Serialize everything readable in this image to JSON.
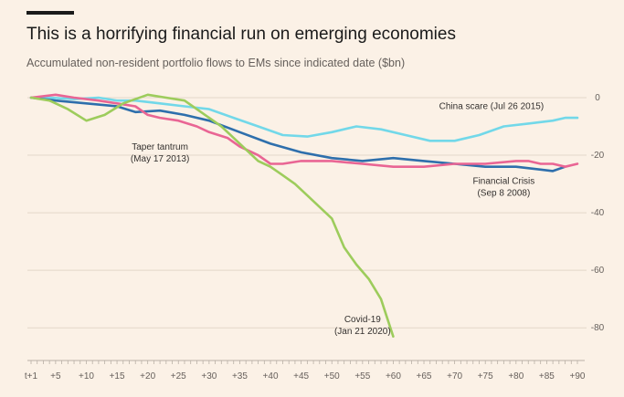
{
  "header": {
    "title": "This is a horrifying financial run on emerging economies",
    "subtitle": "Accumulated non-resident portfolio flows to EMs since indicated date ($bn)"
  },
  "chart_data": {
    "type": "line",
    "title": "This is a horrifying financial run on emerging economies",
    "subtitle": "Accumulated non-resident portfolio flows to EMs since indicated date ($bn)",
    "xlabel": "",
    "ylabel": "",
    "xlim": [
      1,
      90
    ],
    "ylim": [
      -85,
      0
    ],
    "grid": true,
    "y_axis_side": "right",
    "x_tick_labels": [
      "t+1",
      "+5",
      "+10",
      "+15",
      "+20",
      "+25",
      "+30",
      "+35",
      "+40",
      "+45",
      "+50",
      "+55",
      "+60",
      "+65",
      "+70",
      "+75",
      "+80",
      "+85",
      "+90"
    ],
    "x_tick_values": [
      1,
      5,
      10,
      15,
      20,
      25,
      30,
      35,
      40,
      45,
      50,
      55,
      60,
      65,
      70,
      75,
      80,
      85,
      90
    ],
    "y_tick_labels": [
      "0",
      "-20",
      "-40",
      "-60",
      "-80"
    ],
    "y_tick_values": [
      0,
      -20,
      -40,
      -60,
      -80
    ],
    "series": [
      {
        "color": "#72d8e9",
        "x": [
          1,
          4,
          8,
          12,
          15,
          18,
          22,
          26,
          30,
          34,
          38,
          42,
          46,
          50,
          54,
          58,
          62,
          66,
          70,
          74,
          78,
          82,
          86,
          88,
          90
        ],
        "y": [
          0,
          0,
          -0.5,
          0,
          -1,
          -1,
          -2,
          -3,
          -4,
          -7,
          -10,
          -13,
          -13.5,
          -12,
          -10,
          -11,
          -13,
          -15,
          -15,
          -13,
          -10,
          -9,
          -8,
          -7,
          -7
        ]
      },
      {
        "color": "#2e6fac",
        "x": [
          1,
          5,
          10,
          15,
          18,
          22,
          26,
          30,
          35,
          40,
          45,
          50,
          55,
          60,
          65,
          70,
          75,
          80,
          84,
          86,
          88
        ],
        "y": [
          0,
          -1,
          -2,
          -3,
          -5,
          -4.5,
          -6,
          -8,
          -12,
          -16,
          -19,
          -21,
          -22,
          -21,
          -22,
          -23,
          -24,
          -24,
          -25,
          -25.5,
          -24
        ]
      },
      {
        "color": "#e96594",
        "x": [
          1,
          5,
          8,
          12,
          15,
          18,
          20,
          22,
          25,
          28,
          30,
          33,
          35,
          38,
          40,
          42,
          45,
          50,
          55,
          60,
          65,
          70,
          75,
          80,
          82,
          84,
          86,
          88,
          90
        ],
        "y": [
          0,
          1,
          0,
          -1,
          -2,
          -3,
          -6,
          -7,
          -8,
          -10,
          -12,
          -14,
          -17,
          -20,
          -23,
          -23,
          -22,
          -22,
          -23,
          -24,
          -24,
          -23,
          -23,
          -22,
          -22,
          -23,
          -23,
          -24,
          -23
        ]
      },
      {
        "color": "#9dcc5c",
        "x": [
          1,
          4,
          7,
          10,
          13,
          16,
          20,
          23,
          26,
          28,
          30,
          32,
          34,
          36,
          38,
          40,
          42,
          44,
          46,
          48,
          50,
          52,
          54,
          56,
          58,
          60
        ],
        "y": [
          0,
          -1,
          -4,
          -8,
          -6,
          -2,
          1,
          0,
          -1,
          -4,
          -7,
          -10,
          -14,
          -18,
          -22,
          -24,
          -27,
          -30,
          -34,
          -38,
          -42,
          -52,
          -58,
          -63,
          -70,
          -83
        ]
      }
    ],
    "annotations": [
      {
        "series_index": 0,
        "lines": [
          "China scare (Jul 26 2015)"
        ],
        "x": 76,
        "y": -4
      },
      {
        "series_index": 2,
        "lines": [
          "Taper tantrum",
          "(May 17 2013)"
        ],
        "x": 22,
        "y": -18
      },
      {
        "series_index": 1,
        "lines": [
          "Financial Crisis",
          "(Sep 8 2008)"
        ],
        "x": 78,
        "y": -30
      },
      {
        "series_index": 3,
        "lines": [
          "Covid-19",
          "(Jan 21 2020)"
        ],
        "x": 55,
        "y": -78
      }
    ]
  }
}
